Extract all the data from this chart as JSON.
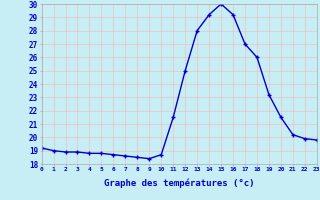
{
  "x": [
    0,
    1,
    2,
    3,
    4,
    5,
    6,
    7,
    8,
    9,
    10,
    11,
    12,
    13,
    14,
    15,
    16,
    17,
    18,
    19,
    20,
    21,
    22,
    23
  ],
  "y": [
    19.2,
    19.0,
    18.9,
    18.9,
    18.8,
    18.8,
    18.7,
    18.6,
    18.5,
    18.4,
    18.7,
    21.5,
    25.0,
    28.0,
    29.2,
    30.0,
    29.2,
    27.0,
    26.0,
    23.2,
    21.5,
    20.2,
    19.9,
    19.8
  ],
  "xlim": [
    0,
    23
  ],
  "ylim": [
    18,
    30
  ],
  "yticks": [
    18,
    19,
    20,
    21,
    22,
    23,
    24,
    25,
    26,
    27,
    28,
    29,
    30
  ],
  "xticks": [
    0,
    1,
    2,
    3,
    4,
    5,
    6,
    7,
    8,
    9,
    10,
    11,
    12,
    13,
    14,
    15,
    16,
    17,
    18,
    19,
    20,
    21,
    22,
    23
  ],
  "xlabel": "Graphe des températures (°c)",
  "line_color": "#0000cc",
  "marker": "+",
  "bg_color": "#c8eef5",
  "grid_color": "#e8c8c8",
  "axis_label_color": "#0000cc",
  "tick_label_color": "#0000cc",
  "spine_color": "#aaaaaa"
}
